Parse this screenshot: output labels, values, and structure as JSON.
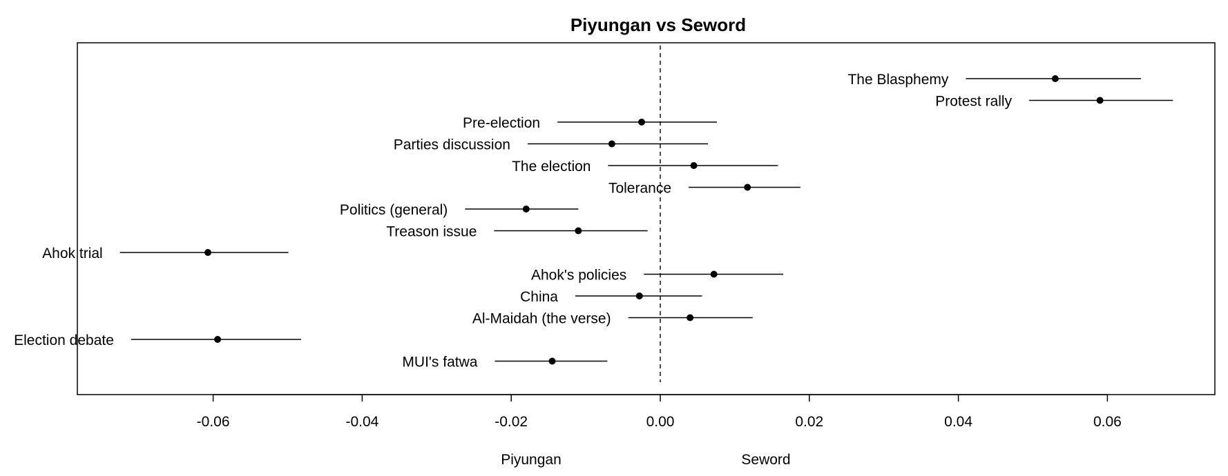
{
  "chart_data": {
    "type": "scatter",
    "title": "Piyungan vs Seword",
    "xlabel": "",
    "ylabel": "",
    "xlim": [
      -0.078,
      0.075
    ],
    "x_ticks": [
      -0.06,
      -0.04,
      -0.02,
      0.0,
      0.02,
      0.04,
      0.06
    ],
    "x_tick_labels": [
      "-0.06",
      "-0.04",
      "-0.02",
      "0.00",
      "0.02",
      "0.04",
      "0.06"
    ],
    "reference_line": 0,
    "grid": false,
    "legend": "none",
    "side_labels": {
      "left": "Piyungan",
      "right": "Seword"
    },
    "points": [
      {
        "label": "The Blasphemy",
        "estimate": 0.053,
        "low": 0.041,
        "high": 0.0645
      },
      {
        "label": "Protest rally",
        "estimate": 0.059,
        "low": 0.0495,
        "high": 0.0688
      },
      {
        "label": "Pre-election",
        "estimate": -0.0025,
        "low": -0.0138,
        "high": 0.0076
      },
      {
        "label": "Parties discussion",
        "estimate": -0.0065,
        "low": -0.0178,
        "high": 0.0064
      },
      {
        "label": "The election",
        "estimate": 0.0045,
        "low": -0.007,
        "high": 0.0158
      },
      {
        "label": "Tolerance",
        "estimate": 0.0117,
        "low": 0.0038,
        "high": 0.0188
      },
      {
        "label": "Politics (general)",
        "estimate": -0.018,
        "low": -0.0262,
        "high": -0.011
      },
      {
        "label": "Treason issue",
        "estimate": -0.011,
        "low": -0.0223,
        "high": -0.0017
      },
      {
        "label": "Ahok trial",
        "estimate": -0.0607,
        "low": -0.0725,
        "high": -0.0499
      },
      {
        "label": "Ahok's policies",
        "estimate": 0.0072,
        "low": -0.0022,
        "high": 0.0165
      },
      {
        "label": "China",
        "estimate": -0.0028,
        "low": -0.0114,
        "high": 0.0056
      },
      {
        "label": "Al-Maidah (the verse)",
        "estimate": 0.004,
        "low": -0.0043,
        "high": 0.0124
      },
      {
        "label": "Election debate",
        "estimate": -0.0594,
        "low": -0.071,
        "high": -0.0482
      },
      {
        "label": "MUI's fatwa",
        "estimate": -0.0145,
        "low": -0.0222,
        "high": -0.0071
      }
    ]
  }
}
